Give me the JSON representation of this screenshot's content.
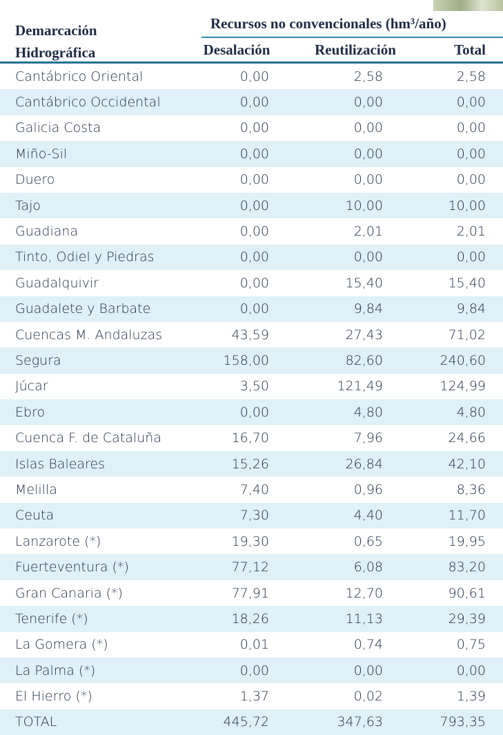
{
  "table": {
    "header": {
      "first_column": "Demarcación Hidrográfica",
      "group": "Recursos no convencionales (hm³/año)",
      "columns": [
        "Desalación",
        "Reutilización",
        "Total"
      ]
    },
    "rows": [
      [
        "Cantábrico Oriental",
        "0,00",
        "2,58",
        "2,58"
      ],
      [
        "Cantábrico Occidental",
        "0,00",
        "0,00",
        "0,00"
      ],
      [
        "Galicia Costa",
        "0,00",
        "0,00",
        "0,00"
      ],
      [
        "Miño-Sil",
        "0,00",
        "0,00",
        "0,00"
      ],
      [
        "Duero",
        "0,00",
        "0,00",
        "0,00"
      ],
      [
        "Tajo",
        "0,00",
        "10,00",
        "10,00"
      ],
      [
        "Guadiana",
        "0,00",
        "2,01",
        "2,01"
      ],
      [
        "Tinto, Odiel y Piedras",
        "0,00",
        "0,00",
        "0,00"
      ],
      [
        "Guadalquivir",
        "0,00",
        "15,40",
        "15,40"
      ],
      [
        "Guadalete y Barbate",
        "0,00",
        "9,84",
        "9,84"
      ],
      [
        "Cuencas M. Andaluzas",
        "43,59",
        "27,43",
        "71,02"
      ],
      [
        "Segura",
        "158,00",
        "82,60",
        "240,60"
      ],
      [
        "Júcar",
        "3,50",
        "121,49",
        "124,99"
      ],
      [
        "Ebro",
        "0,00",
        "4,80",
        "4,80"
      ],
      [
        "Cuenca F. de Cataluña",
        "16,70",
        "7,96",
        "24,66"
      ],
      [
        "Islas Baleares",
        "15,26",
        "26,84",
        "42,10"
      ],
      [
        "Melilla",
        "7,40",
        "0,96",
        "8,36"
      ],
      [
        "Ceuta",
        "7,30",
        "4,40",
        "11,70"
      ],
      [
        "Lanzarote (*)",
        "19,30",
        "0,65",
        "19,95"
      ],
      [
        "Fuerteventura (*)",
        "77,12",
        "6,08",
        "83,20"
      ],
      [
        "Gran Canaria (*)",
        "77,91",
        "12,70",
        "90,61"
      ],
      [
        "Tenerife (*)",
        "18,26",
        "11,13",
        "29,39"
      ],
      [
        "La Gomera (*)",
        "0,01",
        "0,74",
        "0,75"
      ],
      [
        "La Palma (*)",
        "0,00",
        "0,00",
        "0,00"
      ],
      [
        "El Hierro (*)",
        "1,37",
        "0,02",
        "1,39"
      ],
      [
        "TOTAL",
        "445,72",
        "347,63",
        "793,35"
      ]
    ]
  }
}
